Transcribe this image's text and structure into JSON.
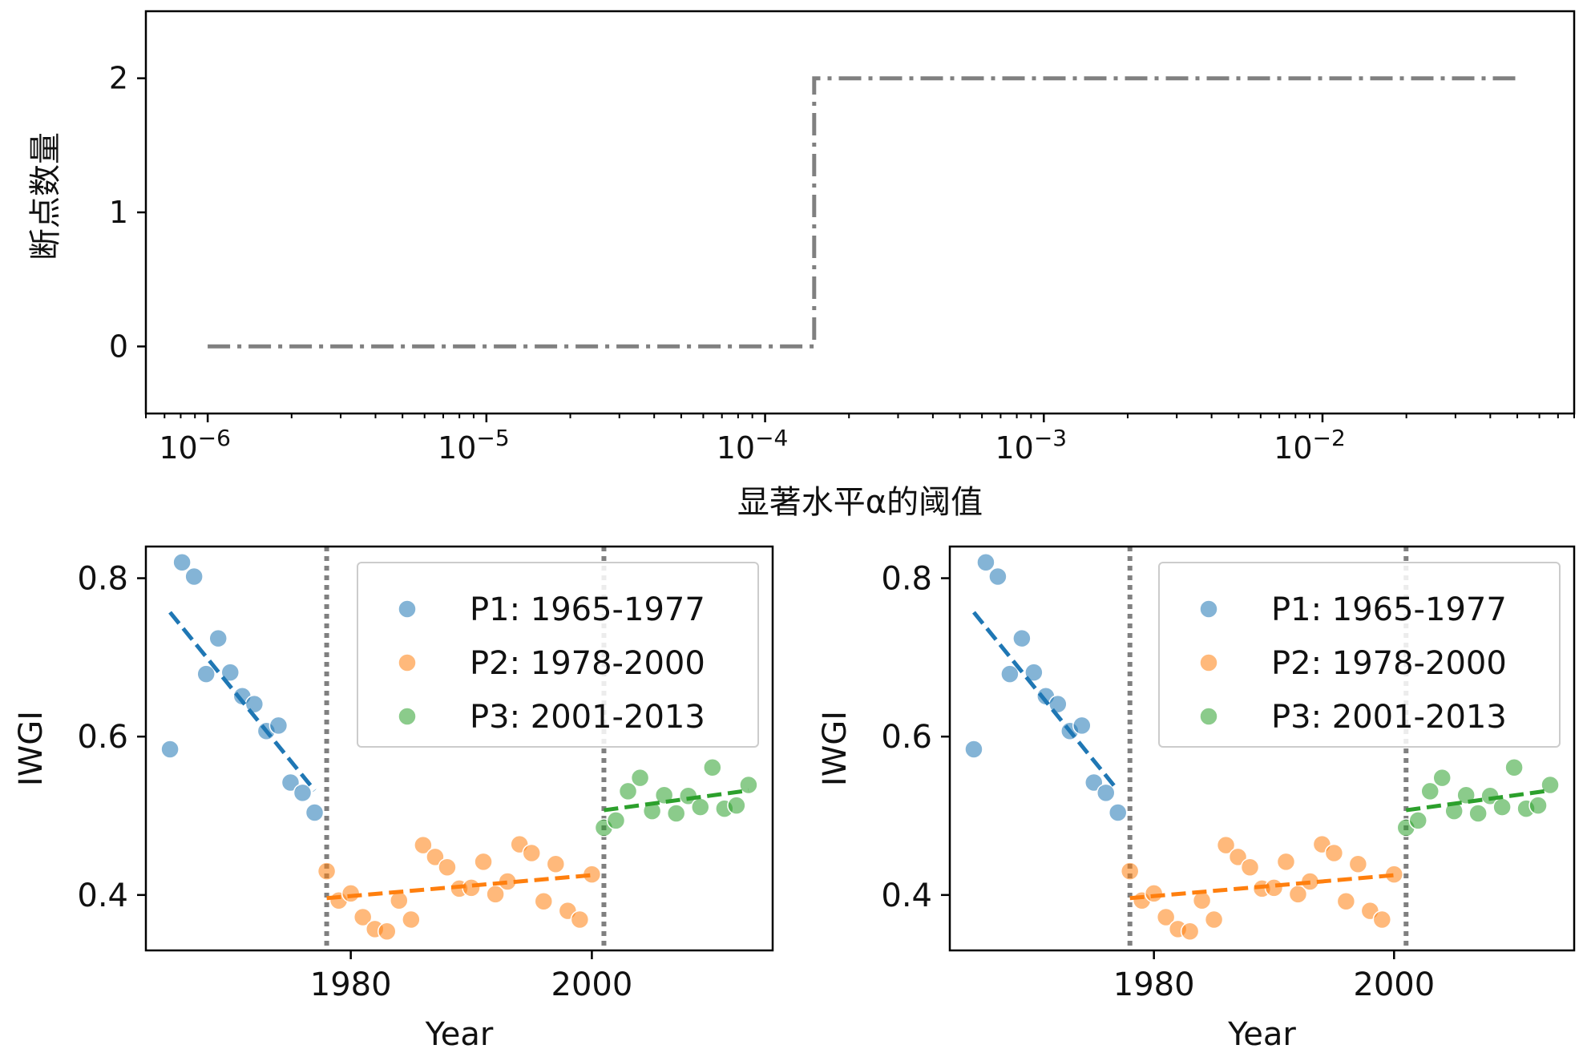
{
  "chart_data": [
    {
      "type": "line",
      "xlabel": "显著水平α的阈值",
      "ylabel": "断点数量",
      "xscale": "log",
      "xlim": [
        6e-07,
        0.08
      ],
      "ylim": [
        -0.5,
        2.5
      ],
      "xticks": [
        {
          "value": 1e-06,
          "base": "10",
          "exp": "−6"
        },
        {
          "value": 1e-05,
          "base": "10",
          "exp": "−5"
        },
        {
          "value": 0.0001,
          "base": "10",
          "exp": "−4"
        },
        {
          "value": 0.001,
          "base": "10",
          "exp": "−3"
        },
        {
          "value": 0.01,
          "base": "10",
          "exp": "−2"
        }
      ],
      "yticks": [
        {
          "value": 0,
          "label": "0"
        },
        {
          "value": 1,
          "label": "1"
        },
        {
          "value": 2,
          "label": "2"
        }
      ],
      "grid": false,
      "series": [
        {
          "color": "#808080",
          "style": "dash-dot",
          "x": [
            1e-06,
            0.00015,
            0.00015,
            0.05
          ],
          "y": [
            0,
            0,
            2,
            2
          ]
        }
      ]
    },
    {
      "type": "scatter",
      "xlabel": "Year",
      "ylabel": "IWGI",
      "xlim": [
        1963,
        2015
      ],
      "ylim": [
        0.33,
        0.84
      ],
      "xticks": [
        {
          "value": 1980,
          "label": "1980"
        },
        {
          "value": 2000,
          "label": "2000"
        }
      ],
      "yticks": [
        {
          "value": 0.4,
          "label": "0.4"
        },
        {
          "value": 0.6,
          "label": "0.6"
        },
        {
          "value": 0.8,
          "label": "0.8"
        }
      ],
      "grid": false,
      "legend_position": "top-right",
      "breakpoints": [
        1978,
        2001
      ],
      "series": [
        {
          "name": "P1: 1965-1977",
          "color": "#1f77b4",
          "x": [
            1965,
            1966,
            1967,
            1968,
            1969,
            1970,
            1971,
            1972,
            1973,
            1974,
            1975,
            1976,
            1977
          ],
          "y": [
            0.584,
            0.82,
            0.802,
            0.679,
            0.724,
            0.681,
            0.651,
            0.641,
            0.607,
            0.614,
            0.542,
            0.529,
            0.504
          ],
          "trend": [
            [
              1965,
              0.757
            ],
            [
              1977,
              0.532
            ]
          ]
        },
        {
          "name": "P2: 1978-2000",
          "color": "#ff7f0e",
          "x": [
            1978,
            1979,
            1980,
            1981,
            1982,
            1983,
            1984,
            1985,
            1986,
            1987,
            1988,
            1989,
            1990,
            1991,
            1992,
            1993,
            1994,
            1995,
            1996,
            1997,
            1998,
            1999,
            2000
          ],
          "y": [
            0.43,
            0.393,
            0.402,
            0.372,
            0.357,
            0.354,
            0.393,
            0.369,
            0.463,
            0.448,
            0.435,
            0.408,
            0.409,
            0.442,
            0.401,
            0.417,
            0.464,
            0.453,
            0.392,
            0.439,
            0.38,
            0.369,
            0.426
          ],
          "trend": [
            [
              1978,
              0.396
            ],
            [
              2000,
              0.425
            ]
          ]
        },
        {
          "name": "P3: 2001-2013",
          "color": "#2ca02c",
          "x": [
            2001,
            2002,
            2003,
            2004,
            2005,
            2006,
            2007,
            2008,
            2009,
            2010,
            2011,
            2012,
            2013
          ],
          "y": [
            0.485,
            0.494,
            0.531,
            0.548,
            0.506,
            0.526,
            0.503,
            0.525,
            0.511,
            0.561,
            0.509,
            0.513,
            0.539
          ],
          "trend": [
            [
              2001,
              0.507
            ],
            [
              2013,
              0.532
            ]
          ]
        }
      ]
    },
    {
      "type": "scatter",
      "xlabel": "Year",
      "ylabel": "IWGI",
      "xlim": [
        1963,
        2015
      ],
      "ylim": [
        0.33,
        0.84
      ],
      "xticks": [
        {
          "value": 1980,
          "label": "1980"
        },
        {
          "value": 2000,
          "label": "2000"
        }
      ],
      "yticks": [
        {
          "value": 0.4,
          "label": "0.4"
        },
        {
          "value": 0.6,
          "label": "0.6"
        },
        {
          "value": 0.8,
          "label": "0.8"
        }
      ],
      "grid": false,
      "legend_position": "top-right",
      "breakpoints": [
        1978,
        2001
      ],
      "series": [
        {
          "name": "P1: 1965-1977",
          "color": "#1f77b4",
          "x": [
            1965,
            1966,
            1967,
            1968,
            1969,
            1970,
            1971,
            1972,
            1973,
            1974,
            1975,
            1976,
            1977
          ],
          "y": [
            0.584,
            0.82,
            0.802,
            0.679,
            0.724,
            0.681,
            0.651,
            0.641,
            0.607,
            0.614,
            0.542,
            0.529,
            0.504
          ],
          "trend": [
            [
              1965,
              0.757
            ],
            [
              1977,
              0.532
            ]
          ]
        },
        {
          "name": "P2: 1978-2000",
          "color": "#ff7f0e",
          "x": [
            1978,
            1979,
            1980,
            1981,
            1982,
            1983,
            1984,
            1985,
            1986,
            1987,
            1988,
            1989,
            1990,
            1991,
            1992,
            1993,
            1994,
            1995,
            1996,
            1997,
            1998,
            1999,
            2000
          ],
          "y": [
            0.43,
            0.393,
            0.402,
            0.372,
            0.357,
            0.354,
            0.393,
            0.369,
            0.463,
            0.448,
            0.435,
            0.408,
            0.409,
            0.442,
            0.401,
            0.417,
            0.464,
            0.453,
            0.392,
            0.439,
            0.38,
            0.369,
            0.426
          ],
          "trend": [
            [
              1978,
              0.396
            ],
            [
              2000,
              0.425
            ]
          ]
        },
        {
          "name": "P3: 2001-2013",
          "color": "#2ca02c",
          "x": [
            2001,
            2002,
            2003,
            2004,
            2005,
            2006,
            2007,
            2008,
            2009,
            2010,
            2011,
            2012,
            2013
          ],
          "y": [
            0.485,
            0.494,
            0.531,
            0.548,
            0.506,
            0.526,
            0.503,
            0.525,
            0.511,
            0.561,
            0.509,
            0.513,
            0.539
          ],
          "trend": [
            [
              2001,
              0.507
            ],
            [
              2013,
              0.532
            ]
          ]
        }
      ]
    }
  ]
}
